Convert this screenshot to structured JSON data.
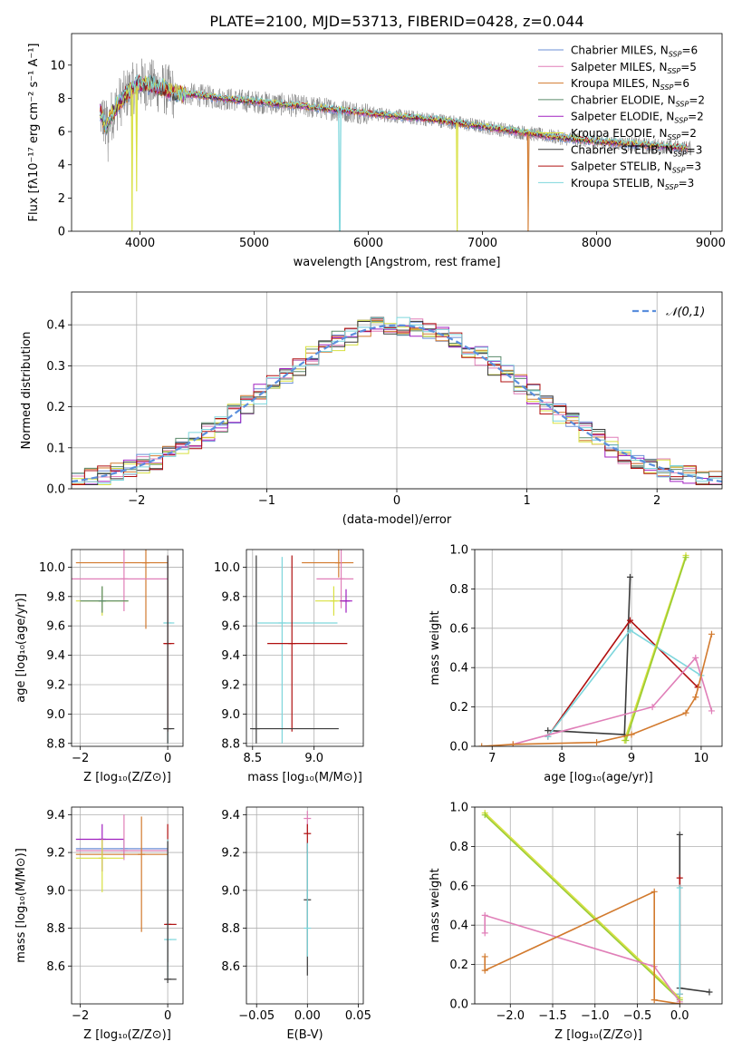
{
  "colors": {
    "chabrier_miles": "#6b8fd6",
    "salpeter_miles": "#e07fb8",
    "kroupa_miles": "#d27a2e",
    "chabrier_elodie": "#5a8a6a",
    "salpeter_elodie": "#a020c0",
    "kroupa_elodie": "#d8e040",
    "chabrier_stelib": "#3a3a3a",
    "salpeter_stelib": "#b01010",
    "kroupa_stelib": "#7ed6dc",
    "observed": "#808080",
    "normal": "#5b8fdd",
    "kroupa_elodie_weights": "#9acd32"
  },
  "chart_data": [
    {
      "id": "spectrum",
      "type": "line",
      "title": "PLATE=2100, MJD=53713, FIBERID=0428, z=0.044",
      "xlabel": "wavelength [Angstrom, rest frame]",
      "ylabel": "Flux [fλ10⁻¹⁷ erg cm⁻² s⁻¹ A⁻¹]",
      "xlim": [
        3400,
        9100
      ],
      "ylim": [
        0,
        11.9
      ],
      "xticks": [
        4000,
        5000,
        6000,
        7000,
        8000,
        9000
      ],
      "yticks": [
        0,
        2,
        4,
        6,
        8,
        10
      ],
      "legend": {
        "position": "top-right",
        "entries": [
          {
            "label": "Chabrier MILES, N",
            "sub": "SSP",
            "suffix": "=6",
            "color_key": "chabrier_miles"
          },
          {
            "label": "Salpeter MILES, N",
            "sub": "SSP",
            "suffix": "=5",
            "color_key": "salpeter_miles"
          },
          {
            "label": "Kroupa MILES, N",
            "sub": "SSP",
            "suffix": "=6",
            "color_key": "kroupa_miles"
          },
          {
            "label": "Chabrier ELODIE, N",
            "sub": "SSP",
            "suffix": "=2",
            "color_key": "chabrier_elodie"
          },
          {
            "label": "Salpeter ELODIE, N",
            "sub": "SSP",
            "suffix": "=2",
            "color_key": "salpeter_elodie"
          },
          {
            "label": "Kroupa ELODIE, N",
            "sub": "SSP",
            "suffix": "=2",
            "color_key": "kroupa_elodie"
          },
          {
            "label": "Chabrier STELIB, N",
            "sub": "SSP",
            "suffix": "=3",
            "color_key": "chabrier_stelib"
          },
          {
            "label": "Salpeter STELIB, N",
            "sub": "SSP",
            "suffix": "=3",
            "color_key": "salpeter_stelib"
          },
          {
            "label": "Kroupa STELIB, N",
            "sub": "SSP",
            "suffix": "=3",
            "color_key": "kroupa_stelib"
          }
        ]
      },
      "continuum": {
        "x": [
          3650,
          3700,
          3800,
          3900,
          4000,
          4100,
          4200,
          4300,
          4500,
          4700,
          5000,
          5300,
          5600,
          6000,
          6300,
          6600,
          7000,
          7400,
          7600,
          8000,
          8400,
          8800
        ],
        "y": [
          7.2,
          6.3,
          7.6,
          8.4,
          8.9,
          8.8,
          8.6,
          8.3,
          8.2,
          8.0,
          7.8,
          7.6,
          7.4,
          7.1,
          6.9,
          6.7,
          6.3,
          5.9,
          5.7,
          5.4,
          5.2,
          5.0
        ]
      },
      "dips": [
        {
          "x": 3930,
          "y": 0.0,
          "series": "kroupa_elodie"
        },
        {
          "x": 3970,
          "y": 2.4,
          "series": "kroupa_elodie"
        },
        {
          "x": 5750,
          "y": 0.0,
          "series": "kroupa_stelib"
        },
        {
          "x": 6780,
          "y": 0.0,
          "series": "kroupa_elodie"
        },
        {
          "x": 7400,
          "y": 0.0,
          "series": "kroupa_miles"
        }
      ]
    },
    {
      "id": "residuals",
      "type": "step",
      "xlabel": "(data-model)/error",
      "ylabel": "Normed distribution",
      "xlim": [
        -2.5,
        2.5
      ],
      "ylim": [
        0,
        0.48
      ],
      "xticks": [
        -2,
        -1,
        0,
        1,
        2
      ],
      "yticks": [
        0.0,
        0.1,
        0.2,
        0.3,
        0.4
      ],
      "bin_width": 0.1,
      "normal_curve": {
        "label": "𝒩(0,1)",
        "mu": 0,
        "sigma": 1
      },
      "legend": {
        "position": "top-right"
      }
    },
    {
      "id": "age_vs_Z",
      "type": "errorbar",
      "xlabel": "Z [log₁₀(Z/Z⊙)]",
      "ylabel": "age  [log₁₀(age/yr)]",
      "xlim": [
        -2.2,
        0.35
      ],
      "ylim": [
        8.78,
        10.12
      ],
      "xticks": [
        -2,
        0
      ],
      "yticks": [
        8.8,
        9.0,
        9.2,
        9.4,
        9.6,
        9.8,
        10.0
      ],
      "points": [
        {
          "series": "kroupa_miles",
          "x": -0.5,
          "y": 10.03,
          "xerr": [
            1.6,
            0.5
          ],
          "yerr": [
            0.45,
            0.09
          ]
        },
        {
          "series": "salpeter_miles",
          "x": -1.0,
          "y": 9.92,
          "xerr": [
            1.2,
            1.0
          ],
          "yerr": [
            0.22,
            0.2
          ]
        },
        {
          "series": "kroupa_elodie",
          "x": -1.5,
          "y": 9.77,
          "xerr": [
            0.6,
            0.6
          ],
          "yerr": [
            0.1,
            0.1
          ]
        },
        {
          "series": "chabrier_elodie",
          "x": -1.5,
          "y": 9.77,
          "xerr": [
            0.5,
            0.6
          ],
          "yerr": [
            0.08,
            0.1
          ]
        },
        {
          "series": "kroupa_stelib",
          "x": 0.0,
          "y": 9.62,
          "xerr": [
            0.1,
            0.15
          ],
          "yerr": [
            0.82,
            0.45
          ]
        },
        {
          "series": "salpeter_stelib",
          "x": 0.0,
          "y": 9.48,
          "xerr": [
            0.1,
            0.15
          ],
          "yerr": [
            0.6,
            0.6
          ]
        },
        {
          "series": "chabrier_stelib",
          "x": 0.0,
          "y": 8.9,
          "xerr": [
            0.1,
            0.15
          ],
          "yerr": [
            0.1,
            1.18
          ]
        }
      ]
    },
    {
      "id": "age_vs_mass",
      "type": "errorbar",
      "xlabel": "mass [log₁₀(M/M⊙)]",
      "ylabel": "",
      "xlim": [
        8.45,
        9.4
      ],
      "ylim": [
        8.78,
        10.12
      ],
      "xticks": [
        8.5,
        9.0
      ],
      "yticks": [
        8.8,
        9.0,
        9.2,
        9.4,
        9.6,
        9.8,
        10.0
      ],
      "points": [
        {
          "series": "kroupa_miles",
          "x": 9.2,
          "y": 10.03,
          "xerr": [
            0.3,
            0.12
          ],
          "yerr": [
            0.1,
            0.09
          ]
        },
        {
          "series": "salpeter_miles",
          "x": 9.22,
          "y": 9.92,
          "xerr": [
            0.2,
            0.1
          ],
          "yerr": [
            0.2,
            0.2
          ]
        },
        {
          "series": "kroupa_elodie",
          "x": 9.16,
          "y": 9.77,
          "xerr": [
            0.15,
            0.1
          ],
          "yerr": [
            0.1,
            0.1
          ]
        },
        {
          "series": "salpeter_elodie",
          "x": 9.26,
          "y": 9.77,
          "xerr": [
            0.05,
            0.05
          ],
          "yerr": [
            0.08,
            0.08
          ]
        },
        {
          "series": "kroupa_stelib",
          "x": 8.74,
          "y": 9.62,
          "xerr": [
            0.2,
            0.45
          ],
          "yerr": [
            0.82,
            0.45
          ]
        },
        {
          "series": "salpeter_stelib",
          "x": 8.82,
          "y": 9.48,
          "xerr": [
            0.2,
            0.45
          ],
          "yerr": [
            0.6,
            0.6
          ]
        },
        {
          "series": "chabrier_stelib",
          "x": 8.53,
          "y": 8.9,
          "xerr": [
            0.05,
            0.67
          ],
          "yerr": [
            0.1,
            1.18
          ]
        }
      ]
    },
    {
      "id": "weight_vs_age",
      "type": "line",
      "xlabel": "age  [log₁₀(age/yr)]",
      "ylabel": "mass weight",
      "xlim": [
        6.75,
        10.3
      ],
      "ylim": [
        0,
        1.0
      ],
      "xticks": [
        7,
        8,
        9,
        10
      ],
      "yticks": [
        0.0,
        0.2,
        0.4,
        0.6,
        0.8,
        1.0
      ],
      "series": [
        {
          "series": "chabrier_stelib",
          "x": [
            7.8,
            8.9,
            8.98
          ],
          "y": [
            0.08,
            0.06,
            0.86
          ]
        },
        {
          "series": "salpeter_stelib",
          "x": [
            7.8,
            8.98,
            9.95
          ],
          "y": [
            0.05,
            0.64,
            0.3
          ]
        },
        {
          "series": "kroupa_stelib",
          "x": [
            7.8,
            8.98,
            10.0
          ],
          "y": [
            0.05,
            0.59,
            0.36
          ]
        },
        {
          "series": "kroupa_elodie",
          "x": [
            8.9,
            9.78
          ],
          "y": [
            0.03,
            0.97
          ]
        },
        {
          "series": "chabrier_elodie",
          "x": [
            8.92,
            9.78
          ],
          "y": [
            0.03,
            0.96
          ]
        },
        {
          "series": "salpeter_miles",
          "x": [
            7.3,
            9.3,
            9.92,
            10.15
          ],
          "y": [
            0.01,
            0.2,
            0.45,
            0.18
          ]
        },
        {
          "series": "kroupa_miles",
          "x": [
            6.85,
            7.3,
            8.5,
            9.0,
            9.78,
            9.92,
            10.15
          ],
          "y": [
            0.0,
            0.01,
            0.02,
            0.06,
            0.17,
            0.25,
            0.57
          ]
        }
      ]
    },
    {
      "id": "mass_vs_Z",
      "type": "errorbar",
      "xlabel": "Z [log₁₀(Z/Z⊙)]",
      "ylabel": "mass [log₁₀(M/M⊙)]",
      "xlim": [
        -2.2,
        0.35
      ],
      "ylim": [
        8.4,
        9.44
      ],
      "xticks": [
        -2,
        0
      ],
      "yticks": [
        8.6,
        8.8,
        9.0,
        9.2,
        9.4
      ],
      "points": [
        {
          "series": "salpeter_elodie",
          "x": -1.5,
          "y": 9.27,
          "xerr": [
            0.6,
            0.5
          ],
          "yerr": [
            0.17,
            0.08
          ]
        },
        {
          "series": "chabrier_miles",
          "x": -1.0,
          "y": 9.22,
          "xerr": [
            1.1,
            1.0
          ],
          "yerr": [
            0.05,
            0.05
          ]
        },
        {
          "series": "salpeter_miles",
          "x": -1.0,
          "y": 9.21,
          "xerr": [
            1.1,
            1.0
          ],
          "yerr": [
            0.05,
            0.19
          ]
        },
        {
          "series": "kroupa_miles",
          "x": -0.6,
          "y": 9.19,
          "xerr": [
            1.5,
            0.6
          ],
          "yerr": [
            0.41,
            0.2
          ]
        },
        {
          "series": "kroupa_elodie",
          "x": -1.5,
          "y": 9.17,
          "xerr": [
            0.6,
            0.5
          ],
          "yerr": [
            0.18,
            0.1
          ]
        },
        {
          "series": "salpeter_stelib",
          "x": 0.0,
          "y": 8.82,
          "xerr": [
            0.05,
            0.2
          ],
          "yerr": [
            0.2,
            0.53
          ]
        },
        {
          "series": "kroupa_stelib",
          "x": 0.0,
          "y": 8.74,
          "xerr": [
            0.05,
            0.2
          ],
          "yerr": [
            0.2,
            0.53
          ]
        },
        {
          "series": "chabrier_stelib",
          "x": 0.0,
          "y": 8.53,
          "xerr": [
            0.05,
            0.2
          ],
          "yerr": [
            0.02,
            0.73
          ]
        }
      ]
    },
    {
      "id": "mass_vs_ebv",
      "type": "errorbar",
      "xlabel": "E(B-V)",
      "ylabel": "",
      "xlim": [
        -0.06,
        0.055
      ],
      "ylim": [
        8.4,
        9.44
      ],
      "xticks": [
        -0.05,
        0.0,
        0.05
      ],
      "yticks": [
        8.6,
        8.8,
        9.0,
        9.2,
        9.4
      ],
      "points": [
        {
          "series": "salpeter_miles",
          "x": 0.0,
          "y": 9.38,
          "xerr": [
            0,
            0
          ],
          "yerr": [
            0.08,
            0.04
          ]
        },
        {
          "series": "salpeter_stelib",
          "x": 0.0,
          "y": 9.3,
          "xerr": [
            0,
            0
          ],
          "yerr": [
            0.1,
            0.05
          ]
        },
        {
          "series": "chabrier_stelib",
          "x": 0.0,
          "y": 8.95,
          "xerr": [
            0,
            0
          ],
          "yerr": [
            0.4,
            0.3
          ]
        },
        {
          "series": "kroupa_stelib",
          "x": 0.0,
          "y": 8.8,
          "xerr": [
            0,
            0
          ],
          "yerr": [
            0.15,
            0.45
          ]
        }
      ]
    },
    {
      "id": "weight_vs_Z",
      "type": "line",
      "xlabel": "Z [log₁₀(Z/Z⊙)]",
      "ylabel": "mass weight",
      "xlim": [
        -2.42,
        0.5
      ],
      "ylim": [
        0,
        1.0
      ],
      "xticks": [
        -2.0,
        -1.5,
        -1.0,
        -0.5,
        0.0
      ],
      "yticks": [
        0.0,
        0.2,
        0.4,
        0.6,
        0.8,
        1.0
      ],
      "series": [
        {
          "series": "kroupa_elodie",
          "x": [
            -2.3,
            0.0
          ],
          "y": [
            0.97,
            0.03
          ]
        },
        {
          "series": "chabrier_elodie",
          "x": [
            -2.3,
            0.0
          ],
          "y": [
            0.96,
            0.02
          ]
        },
        {
          "series": "salpeter_miles",
          "x": [
            -2.3,
            -2.3,
            -0.3,
            0.0
          ],
          "y": [
            0.36,
            0.45,
            0.19,
            0.01
          ]
        },
        {
          "series": "kroupa_miles",
          "x": [
            -2.3,
            -2.3,
            -0.3,
            -0.3,
            0.0
          ],
          "y": [
            0.24,
            0.17,
            0.57,
            0.02,
            0.0
          ]
        },
        {
          "series": "chabrier_stelib",
          "x": [
            0.0,
            0.0,
            0.35
          ],
          "y": [
            0.86,
            0.08,
            0.06
          ]
        },
        {
          "series": "salpeter_stelib",
          "x": [
            0.0,
            0.0
          ],
          "y": [
            0.64,
            0.05
          ]
        },
        {
          "series": "kroupa_stelib",
          "x": [
            0.0,
            0.0
          ],
          "y": [
            0.59,
            0.05
          ]
        }
      ]
    }
  ]
}
